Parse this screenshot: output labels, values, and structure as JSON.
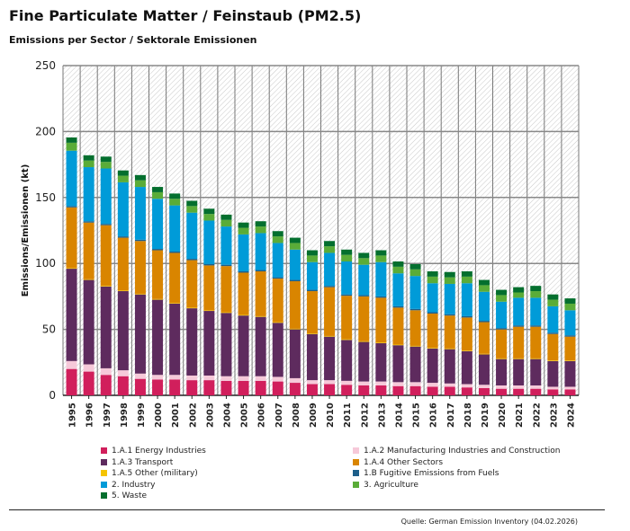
{
  "title": "Fine Particulate Matter / Feinstaub (PM2.5)",
  "subtitle": "Emissions per Sector / Sektorale Emissionen",
  "source": "Quelle: German Emission Inventory (04.02.2026)",
  "chart_data": {
    "type": "bar",
    "stacked": true,
    "ylabel": "Emissions/Emissionen (kt)",
    "ylim": [
      0,
      250
    ],
    "yticks": [
      0,
      50,
      100,
      150,
      200,
      250
    ],
    "grid": true,
    "legend_position": "bottom",
    "categories": [
      "1995",
      "1996",
      "1997",
      "1998",
      "1999",
      "2000",
      "2001",
      "2002",
      "2003",
      "2004",
      "2005",
      "2006",
      "2007",
      "2008",
      "2009",
      "2010",
      "2011",
      "2012",
      "2013",
      "2014",
      "2015",
      "2016",
      "2017",
      "2018",
      "2019",
      "2020",
      "2021",
      "2022",
      "2023",
      "2024"
    ],
    "series": [
      {
        "name": "1.A.1 Energy Industries",
        "color": "#d11f5c",
        "values": [
          20,
          18,
          15.5,
          14.5,
          12.5,
          12,
          12,
          11.5,
          11.5,
          11,
          11,
          11,
          10.5,
          9.5,
          8.5,
          8.5,
          8,
          7.5,
          7.5,
          7,
          7,
          6.5,
          6.5,
          6,
          5.5,
          5,
          5,
          5,
          4.5,
          4.5
        ]
      },
      {
        "name": "1.A.2 Manufacturing Industries and Construction",
        "color": "#f6c9d9",
        "values": [
          6,
          5.5,
          5,
          4.5,
          4,
          3.5,
          3.5,
          3.5,
          3.5,
          3.5,
          3.5,
          3.5,
          3.5,
          3.5,
          3,
          3,
          3,
          3,
          3,
          3,
          3,
          3,
          2.5,
          2.5,
          2.5,
          2.5,
          2.5,
          2.5,
          2,
          2
        ]
      },
      {
        "name": "1.A.3 Transport",
        "color": "#5e2b5e",
        "values": [
          70,
          64,
          62,
          60,
          60,
          57,
          54,
          51,
          49,
          48,
          46,
          45,
          41,
          37,
          35,
          33,
          31,
          30,
          29,
          28,
          27,
          26,
          26,
          25,
          23,
          20,
          20,
          20,
          19.5,
          19.5
        ]
      },
      {
        "name": "1.A.4 Other Sectors",
        "color": "#d98500",
        "values": [
          46,
          43,
          46,
          40,
          40,
          37,
          38,
          36,
          34,
          35,
          32,
          34,
          33,
          36,
          32,
          37,
          33,
          34,
          34,
          28,
          27,
          26,
          25,
          25,
          24,
          22,
          24,
          24,
          20,
          18
        ]
      },
      {
        "name": "1.A.5 Other (military)",
        "color": "#f5c400",
        "values": [
          0.5,
          0.5,
          0.5,
          0.5,
          0.5,
          0.5,
          0.5,
          0.5,
          0.5,
          0.5,
          0.5,
          0.5,
          0.5,
          0.5,
          0.5,
          0.5,
          0.5,
          0.5,
          0.5,
          0.5,
          0.5,
          0.5,
          0.5,
          0.5,
          0.5,
          0.5,
          0.5,
          0.5,
          0.5,
          0.5
        ]
      },
      {
        "name": "1.B Fugitive Emissions from Fuels",
        "color": "#1d5f8a",
        "values": [
          1,
          1,
          1,
          1,
          1,
          1,
          1,
          1,
          1,
          1,
          1,
          1,
          1,
          1,
          1,
          1,
          1,
          1,
          1,
          1,
          1,
          1,
          1,
          1,
          1,
          1,
          1,
          1,
          1,
          1
        ]
      },
      {
        "name": "2. Industry",
        "color": "#009bd8",
        "values": [
          42,
          41,
          42,
          41,
          40,
          38,
          35,
          35,
          33,
          29,
          28,
          28,
          26,
          23,
          21,
          25,
          25,
          23,
          26,
          25,
          25,
          22,
          23,
          25,
          22,
          20,
          21,
          21,
          20,
          19
        ]
      },
      {
        "name": "3. Agriculture",
        "color": "#5aac38",
        "values": [
          6,
          5,
          5,
          5,
          5,
          5,
          5,
          5,
          5,
          5,
          5,
          5,
          5,
          5,
          5,
          5,
          5,
          5,
          5,
          5,
          5,
          5,
          5,
          5,
          5,
          5,
          4,
          5,
          5,
          5
        ]
      },
      {
        "name": "5. Waste",
        "color": "#046f2e",
        "values": [
          4,
          4,
          4,
          4,
          4,
          4,
          4,
          4,
          4,
          4,
          4,
          4,
          4,
          4,
          4,
          4,
          4,
          4,
          4,
          4,
          4,
          4,
          4,
          4,
          4,
          4,
          4,
          4,
          4,
          4
        ]
      }
    ],
    "legend_order": [
      0,
      1,
      2,
      3,
      4,
      5,
      6,
      7,
      8
    ]
  }
}
